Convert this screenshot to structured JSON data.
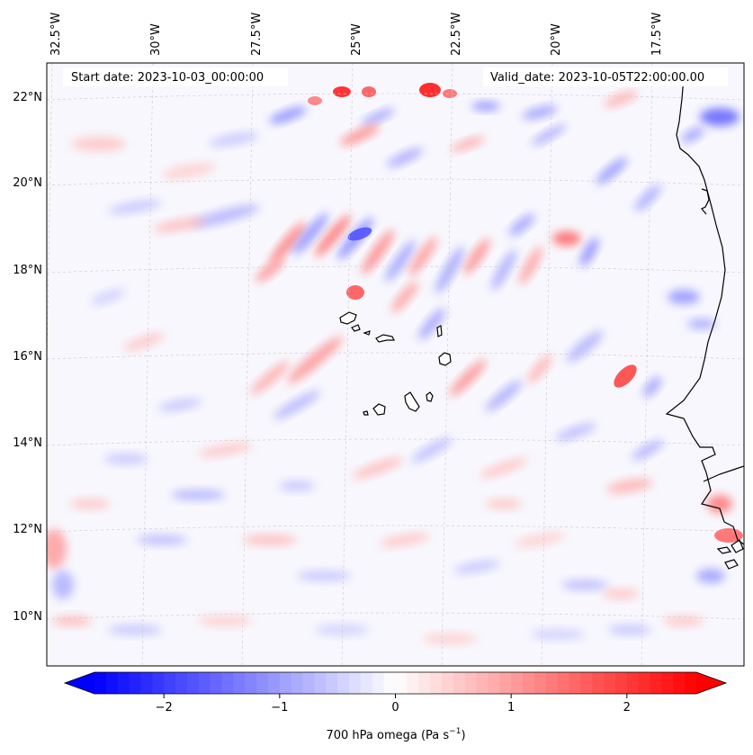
{
  "header": {
    "start_date": "Start date: 2023-10-03_00:00:00",
    "valid_date": "Valid_date: 2023-10-05T22:00:00.00"
  },
  "map": {
    "projection": "lambert-conformal",
    "region": "Cabo Verde / West Africa coast",
    "lon_labels": [
      "32.5°W",
      "30°W",
      "27.5°W",
      "25°W",
      "22.5°W",
      "20°W",
      "17.5°W"
    ],
    "lat_labels": [
      "22°N",
      "20°N",
      "18°N",
      "16°N",
      "14°N",
      "12°N",
      "10°N"
    ],
    "gridlines": true,
    "coastline_color": "#000000"
  },
  "colorbar": {
    "label": "700 hPa omega (Pa s",
    "label_exp": "−1",
    "label_close": ")",
    "ticks": [
      "−2",
      "−1",
      "0",
      "1",
      "2"
    ],
    "tick_values": [
      -2,
      -1,
      0,
      1,
      2
    ],
    "vmin": -2.6,
    "vmax": 2.6,
    "levels": 52,
    "extend": "both",
    "colormap": "bwr",
    "color_min": "#0000ff",
    "color_mid": "#ffffff",
    "color_max": "#ff0000"
  }
}
